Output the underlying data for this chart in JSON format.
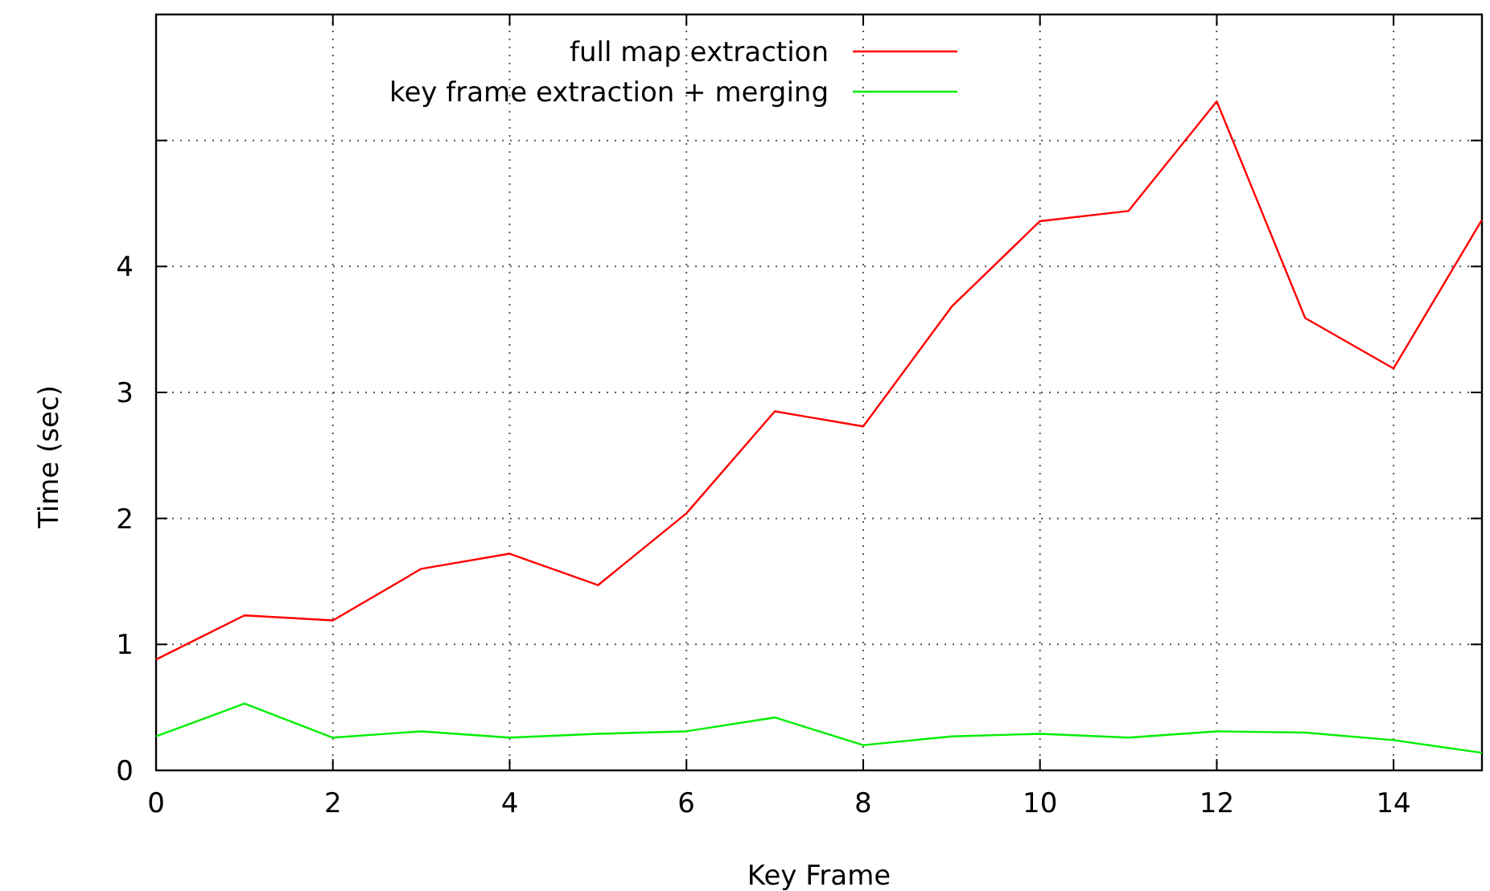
{
  "chart_data": {
    "type": "line",
    "xlabel": "Key Frame",
    "ylabel": "Time (sec)",
    "x": [
      0,
      1,
      2,
      3,
      4,
      5,
      6,
      7,
      8,
      9,
      10,
      11,
      12,
      13,
      14,
      15
    ],
    "series": [
      {
        "name": "full map extraction",
        "color": "#ff0000",
        "values": [
          0.88,
          1.23,
          1.19,
          1.6,
          1.72,
          1.47,
          2.04,
          2.85,
          2.73,
          3.68,
          4.36,
          4.44,
          5.31,
          3.59,
          3.19,
          4.37
        ]
      },
      {
        "name": "key frame extraction + merging",
        "color": "#00ee00",
        "values": [
          0.27,
          0.53,
          0.26,
          0.31,
          0.26,
          0.29,
          0.31,
          0.42,
          0.2,
          0.27,
          0.29,
          0.26,
          0.31,
          0.3,
          0.24,
          0.14
        ]
      }
    ],
    "xlim": [
      0,
      15
    ],
    "xticks": [
      0,
      2,
      4,
      6,
      8,
      10,
      12,
      14
    ],
    "ylim": [
      0,
      6
    ],
    "yticks": [
      0,
      1,
      2,
      3,
      4,
      {
        "value": 5,
        "label": null
      },
      {
        "value": 6,
        "label": null
      }
    ],
    "grid": true,
    "legend": "top",
    "marker": "none",
    "line_style": "solid"
  }
}
